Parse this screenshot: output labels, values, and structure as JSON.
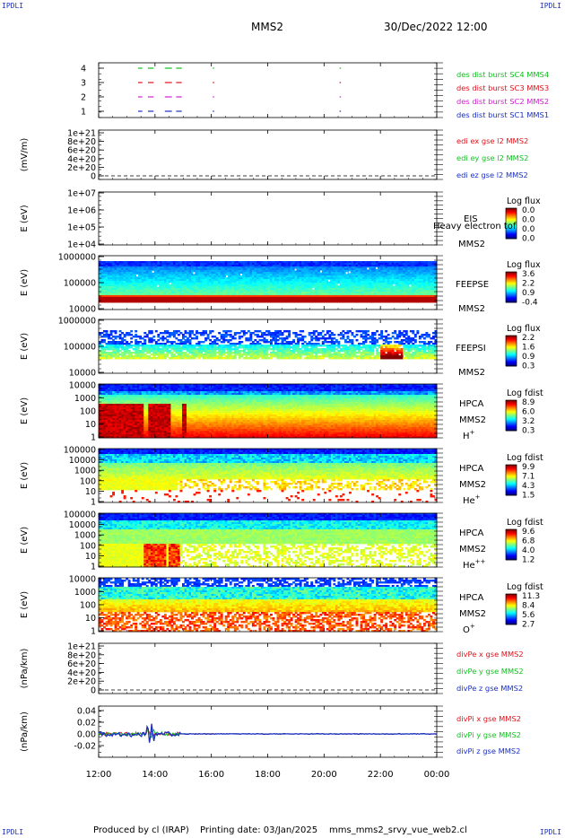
{
  "header": {
    "corner_label": "IPDLI",
    "spacecraft": "MMS2",
    "datetime": "30/Dec/2022 12:00"
  },
  "footer": {
    "produced_by": "Produced by cl (IRAP)",
    "printing_date": "Printing date: 03/Jan/2025",
    "filename": "mms_mms2_srvy_vue_web2.cl"
  },
  "x_axis": {
    "ticks": [
      "12:00",
      "14:00",
      "16:00",
      "18:00",
      "20:00",
      "22:00",
      "00:00"
    ]
  },
  "colors": {
    "red": "#e0101a",
    "green": "#10c020",
    "blue": "#1a2fc0",
    "magenta": "#d020d0"
  },
  "chart_data": [
    {
      "type": "scatter",
      "panel": "burst",
      "yticks": [
        "4",
        "3",
        "2",
        "1"
      ],
      "ylim": [
        0.5,
        4.5
      ],
      "series": [
        {
          "name": "des dist burst SC1 MMS1",
          "color": "#1a2fc0",
          "level": 1,
          "intervals": [
            [
              13.4,
              13.55
            ],
            [
              13.75,
              13.95
            ],
            [
              14.35,
              14.6
            ],
            [
              14.75,
              14.95
            ],
            [
              16.05,
              16.1
            ],
            [
              20.55,
              20.6
            ]
          ]
        },
        {
          "name": "des dist burst SC2 MMS2",
          "color": "#d020d0",
          "level": 2,
          "intervals": [
            [
              13.4,
              13.55
            ],
            [
              13.75,
              13.95
            ],
            [
              14.35,
              14.6
            ],
            [
              14.75,
              14.95
            ],
            [
              16.05,
              16.1
            ],
            [
              20.55,
              20.6
            ]
          ]
        },
        {
          "name": "des dist burst SC3 MMS3",
          "color": "#e0101a",
          "level": 3,
          "intervals": [
            [
              13.4,
              13.55
            ],
            [
              13.75,
              13.95
            ],
            [
              14.35,
              14.6
            ],
            [
              14.75,
              14.95
            ],
            [
              16.05,
              16.1
            ],
            [
              20.55,
              20.6
            ]
          ]
        },
        {
          "name": "des dist burst SC4 MMS4",
          "color": "#10c020",
          "level": 4,
          "intervals": [
            [
              13.4,
              13.55
            ],
            [
              13.75,
              13.95
            ],
            [
              14.35,
              14.6
            ],
            [
              14.75,
              14.95
            ],
            [
              16.05,
              16.1
            ],
            [
              20.55,
              20.6
            ]
          ]
        }
      ]
    },
    {
      "type": "line",
      "panel": "edi",
      "ylabel": "(mV/m)",
      "yticks": [
        "1e+21",
        "8e+20",
        "6e+20",
        "4e+20",
        "2e+20",
        "0"
      ],
      "ylim": [
        0,
        1e+21
      ],
      "series": [
        {
          "name": "edi ex gse l2 MMS2",
          "color": "#e0101a"
        },
        {
          "name": "edi ey gse l2 MMS2",
          "color": "#10c020"
        },
        {
          "name": "edi ez gse l2 MMS2",
          "color": "#1a2fc0"
        }
      ]
    },
    {
      "type": "heatmap",
      "panel": "eis",
      "ylabel": "E (eV)",
      "yticks": [
        "1e+07",
        "1e+06",
        "1e+05",
        "1e+04"
      ],
      "yscale": "log",
      "ylim": [
        10000.0,
        10000000.0
      ],
      "instrument": "EIS",
      "species": "Heavy electron tof",
      "spacecraft": "MMS2",
      "colorbar": {
        "title": "Log flux",
        "ticks": [
          "0.0",
          "0.0",
          "0.0",
          "0.0"
        ]
      },
      "profile": "empty"
    },
    {
      "type": "heatmap",
      "panel": "feepse",
      "ylabel": "E (eV)",
      "yticks": [
        "1000000",
        "100000",
        "10000"
      ],
      "yscale": "log",
      "ylim": [
        10000.0,
        1000000.0
      ],
      "instrument": "FEEPSE",
      "spacecraft": "MMS2",
      "colorbar": {
        "title": "Log flux",
        "ticks": [
          "3.6",
          "2.2",
          "0.9",
          "-0.4"
        ]
      },
      "profile": "feepse"
    },
    {
      "type": "heatmap",
      "panel": "feepsi",
      "ylabel": "E (eV)",
      "yticks": [
        "1000000",
        "100000",
        "10000"
      ],
      "yscale": "log",
      "ylim": [
        10000.0,
        1000000.0
      ],
      "instrument": "FEEPSI",
      "spacecraft": "MMS2",
      "colorbar": {
        "title": "Log flux",
        "ticks": [
          "2.2",
          "1.6",
          "0.9",
          "0.3"
        ]
      },
      "profile": "feepsi"
    },
    {
      "type": "heatmap",
      "panel": "hpca_h",
      "ylabel": "E (eV)",
      "yticks": [
        "10000",
        "1000",
        "100",
        "10",
        "1"
      ],
      "yscale": "log",
      "ylim": [
        1,
        40000
      ],
      "instrument": "HPCA",
      "spacecraft": "MMS2",
      "ion_base": "H",
      "ion_sup": "+",
      "colorbar": {
        "title": "Log fdist",
        "ticks": [
          "8.9",
          "6.0",
          "3.2",
          "0.3"
        ]
      },
      "profile": "hpca_h"
    },
    {
      "type": "heatmap",
      "panel": "hpca_he1",
      "ylabel": "E (eV)",
      "yticks": [
        "100000",
        "10000",
        "1000",
        "100",
        "10",
        "1"
      ],
      "yscale": "log",
      "ylim": [
        1,
        100000
      ],
      "instrument": "HPCA",
      "spacecraft": "MMS2",
      "ion_base": "He",
      "ion_sup": "+",
      "colorbar": {
        "title": "Log fdist",
        "ticks": [
          "9.9",
          "7.1",
          "4.3",
          "1.5"
        ]
      },
      "profile": "hpca_he1"
    },
    {
      "type": "heatmap",
      "panel": "hpca_he2",
      "ylabel": "E (eV)",
      "yticks": [
        "100000",
        "10000",
        "1000",
        "100",
        "10",
        "1"
      ],
      "yscale": "log",
      "ylim": [
        1,
        100000
      ],
      "instrument": "HPCA",
      "spacecraft": "MMS2",
      "ion_base": "He",
      "ion_sup": "++",
      "colorbar": {
        "title": "Log fdist",
        "ticks": [
          "9.6",
          "6.8",
          "4.0",
          "1.2"
        ]
      },
      "profile": "hpca_he2"
    },
    {
      "type": "heatmap",
      "panel": "hpca_o",
      "ylabel": "E (eV)",
      "yticks": [
        "10000",
        "1000",
        "100",
        "10",
        "1"
      ],
      "yscale": "log",
      "ylim": [
        1,
        40000
      ],
      "instrument": "HPCA",
      "spacecraft": "MMS2",
      "ion_base": "O",
      "ion_sup": "+",
      "colorbar": {
        "title": "Log fdist",
        "ticks": [
          "11.3",
          "8.4",
          "5.6",
          "2.7"
        ]
      },
      "profile": "hpca_o"
    },
    {
      "type": "line",
      "panel": "divpe",
      "ylabel": "(nPa/km)",
      "yticks": [
        "1e+21",
        "8e+20",
        "6e+20",
        "4e+20",
        "2e+20",
        "0"
      ],
      "ylim": [
        0,
        1e+21
      ],
      "series": [
        {
          "name": "divPe x gse MMS2",
          "color": "#e0101a"
        },
        {
          "name": "divPe y gse MMS2",
          "color": "#10c020"
        },
        {
          "name": "divPe z gse MMS2",
          "color": "#1a2fc0"
        }
      ]
    },
    {
      "type": "line",
      "panel": "divpi",
      "ylabel": "(nPa/km)",
      "yticks": [
        "0.04",
        "0.02",
        "0.00",
        "-0.02"
      ],
      "ylim": [
        -0.025,
        0.045
      ],
      "series": [
        {
          "name": "divPi x gse MMS2",
          "color": "#e0101a"
        },
        {
          "name": "divPi y gse MMS2",
          "color": "#10c020"
        },
        {
          "name": "divPi z gse MMS2",
          "color": "#1a2fc0"
        }
      ]
    }
  ]
}
